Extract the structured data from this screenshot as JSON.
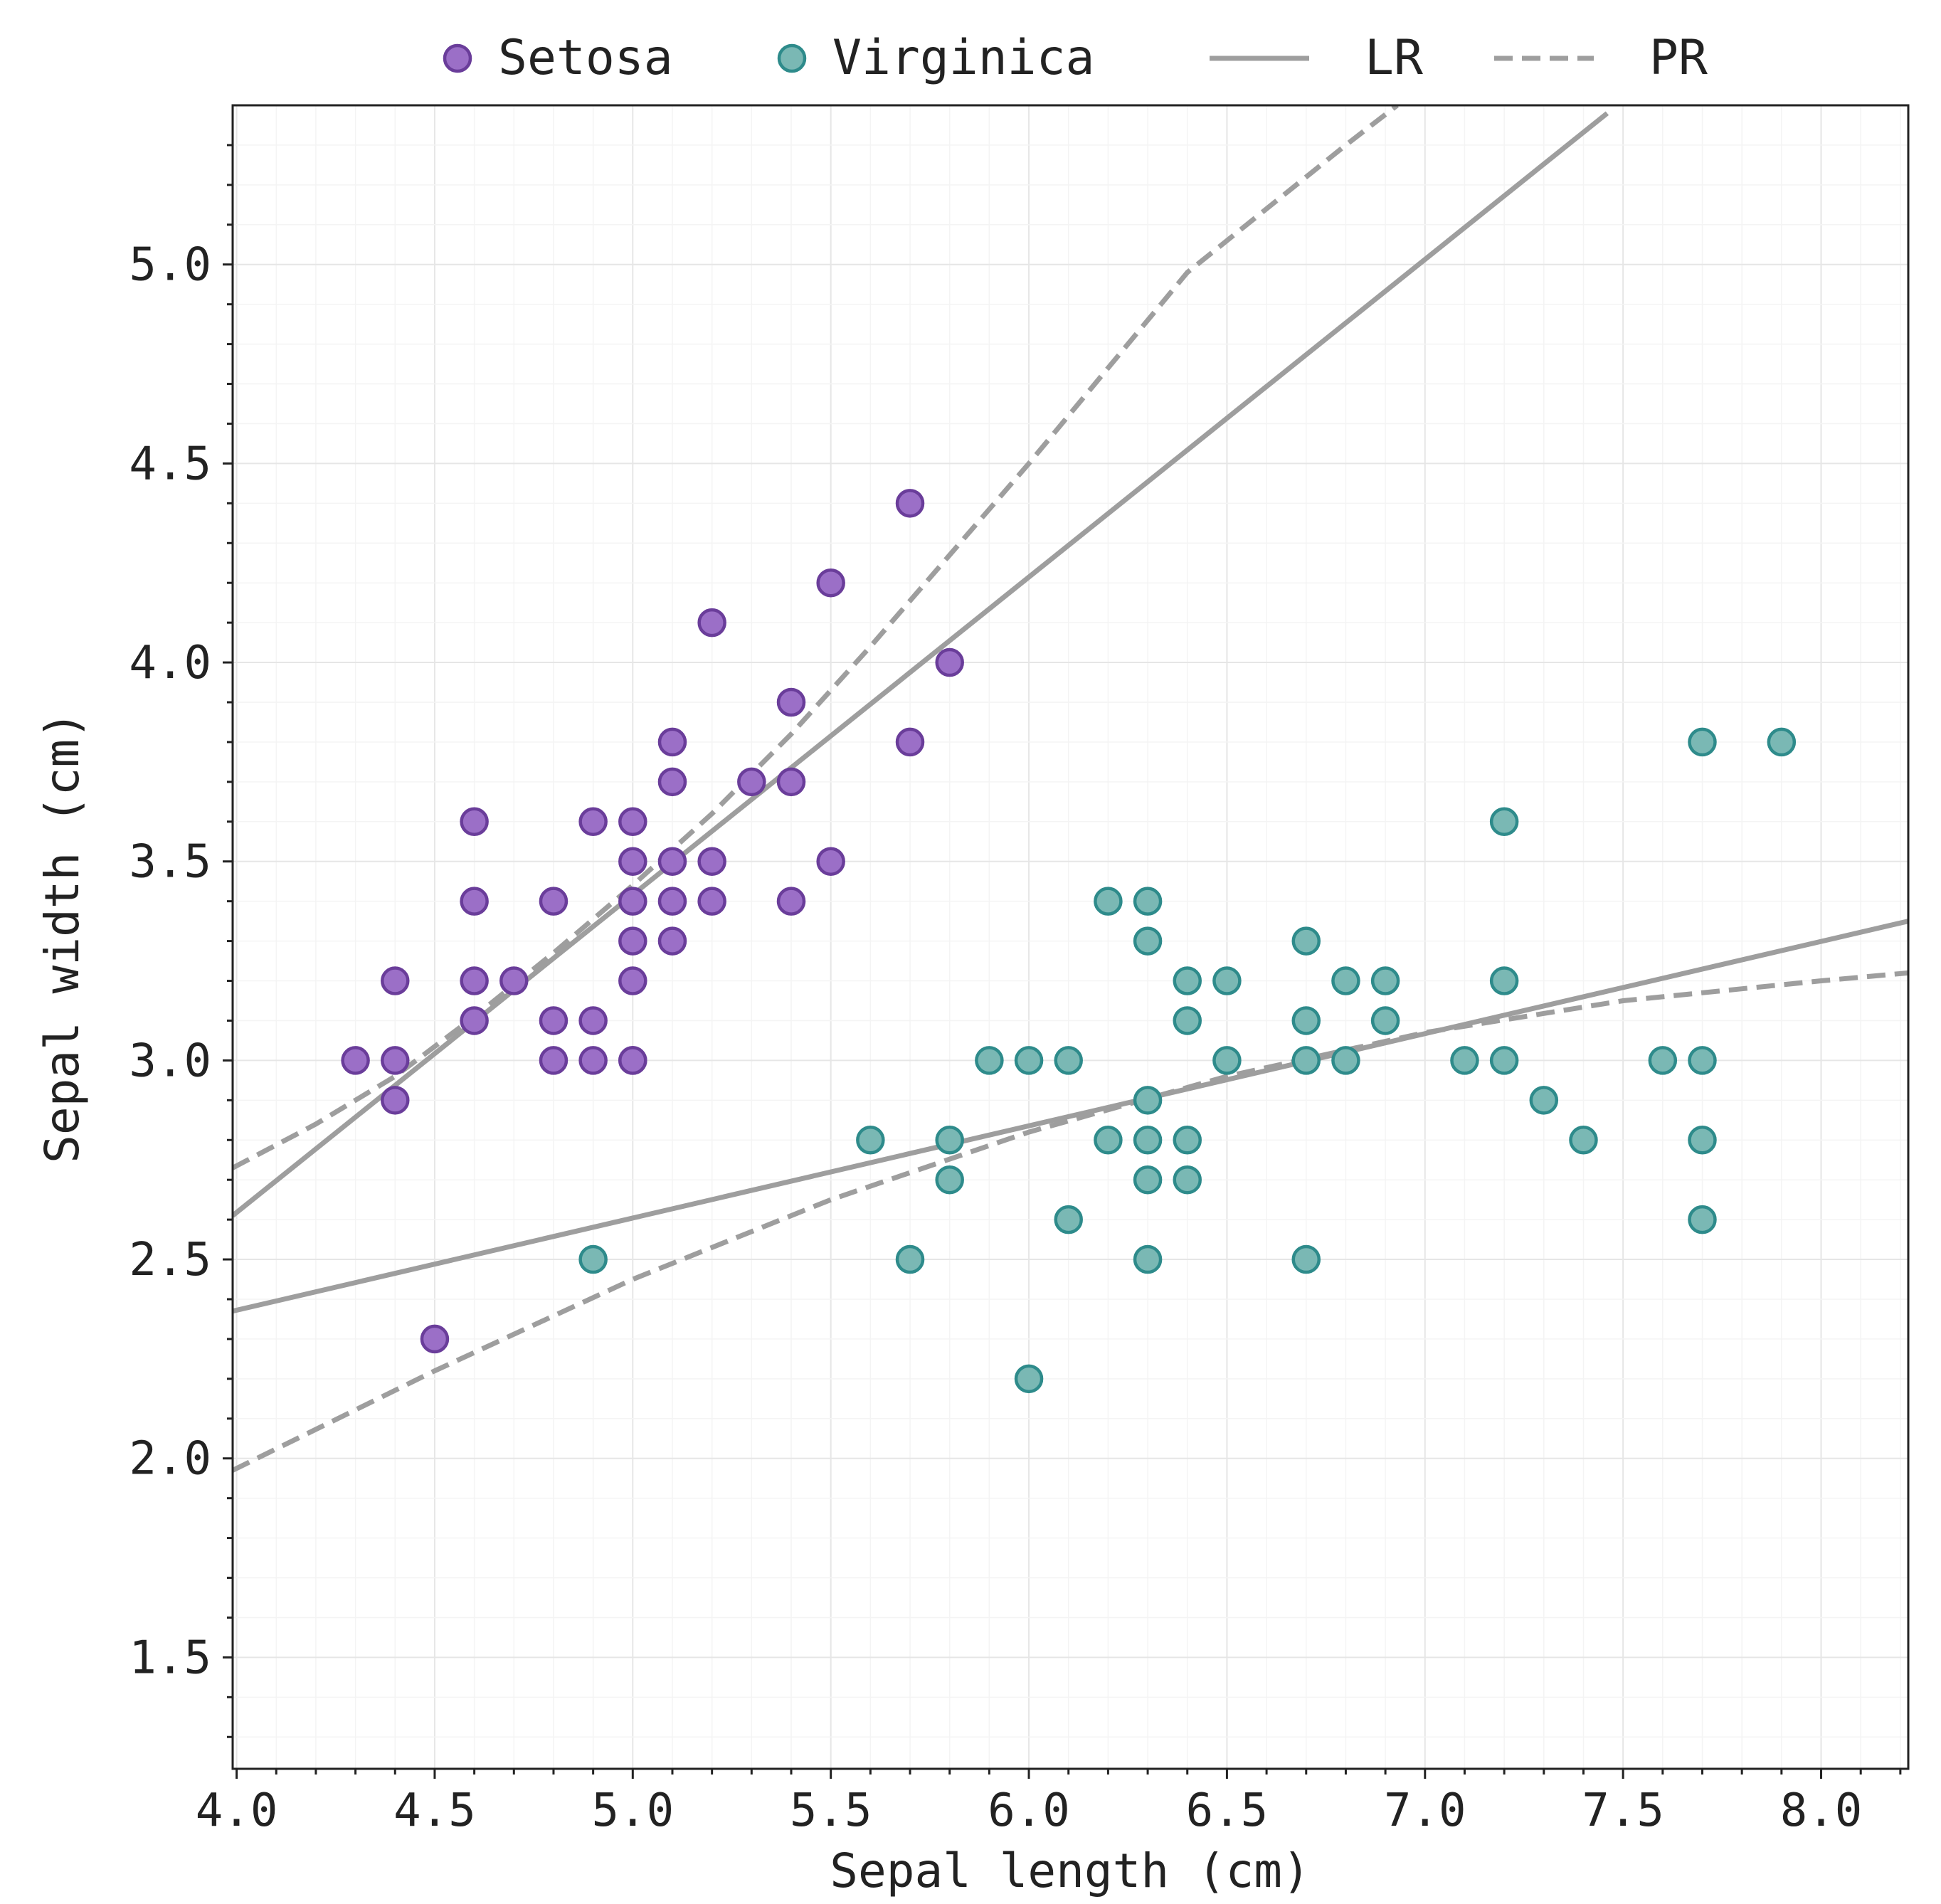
{
  "chart_data": {
    "type": "scatter",
    "title": "",
    "xlabel": "Sepal length (cm)",
    "ylabel": "Sepal width (cm)",
    "xlim": [
      3.99,
      8.22
    ],
    "ylim": [
      1.22,
      5.4
    ],
    "x_ticks": [
      4.0,
      4.5,
      5.0,
      5.5,
      6.0,
      6.5,
      7.0,
      7.5,
      8.0
    ],
    "x_tick_labels": [
      "4.0",
      "4.5",
      "5.0",
      "5.5",
      "6.0",
      "6.5",
      "7.0",
      "7.5",
      "8.0"
    ],
    "y_ticks": [
      1.5,
      2.0,
      2.5,
      3.0,
      3.5,
      4.0,
      4.5,
      5.0
    ],
    "y_tick_labels": [
      "1.5",
      "2.0",
      "2.5",
      "3.0",
      "3.5",
      "4.0",
      "4.5",
      "5.0"
    ],
    "grid": true,
    "legend_position": "top-center",
    "series": [
      {
        "name": "Setosa",
        "kind": "points",
        "fill": "#9b6fc7",
        "stroke": "#6a3d9a",
        "x": [
          4.3,
          4.4,
          4.4,
          4.4,
          4.5,
          4.6,
          4.6,
          4.6,
          4.6,
          4.7,
          4.8,
          4.8,
          4.8,
          4.9,
          4.9,
          4.9,
          5.0,
          5.0,
          5.0,
          5.0,
          5.0,
          5.0,
          5.0,
          5.1,
          5.1,
          5.1,
          5.1,
          5.1,
          5.2,
          5.2,
          5.2,
          5.3,
          5.4,
          5.4,
          5.4,
          5.5,
          5.5,
          5.7,
          5.7,
          5.8
        ],
        "y": [
          3.0,
          3.2,
          3.0,
          2.9,
          2.3,
          3.6,
          3.4,
          3.2,
          3.1,
          3.2,
          3.4,
          3.1,
          3.0,
          3.6,
          3.1,
          3.0,
          3.6,
          3.5,
          3.4,
          3.3,
          3.2,
          3.0,
          3.0,
          3.8,
          3.7,
          3.5,
          3.4,
          3.3,
          4.1,
          3.5,
          3.4,
          3.7,
          3.9,
          3.7,
          3.4,
          4.2,
          3.5,
          4.4,
          3.8,
          4.0
        ]
      },
      {
        "name": "Virginica",
        "kind": "points",
        "fill": "#7ab8b4",
        "stroke": "#2e8b8b",
        "x": [
          4.9,
          5.6,
          5.7,
          5.8,
          5.8,
          5.9,
          6.0,
          6.0,
          6.1,
          6.1,
          6.2,
          6.2,
          6.3,
          6.3,
          6.3,
          6.3,
          6.3,
          6.3,
          6.4,
          6.4,
          6.4,
          6.4,
          6.5,
          6.5,
          6.7,
          6.7,
          6.7,
          6.7,
          6.8,
          6.8,
          6.9,
          6.9,
          7.1,
          7.2,
          7.2,
          7.2,
          7.3,
          7.4,
          7.6,
          7.7,
          7.7,
          7.7,
          7.7,
          7.9
        ],
        "y": [
          2.5,
          2.8,
          2.5,
          2.8,
          2.7,
          3.0,
          3.0,
          2.2,
          3.0,
          2.6,
          3.4,
          2.8,
          3.4,
          3.3,
          2.9,
          2.8,
          2.7,
          2.5,
          3.2,
          3.1,
          2.8,
          2.7,
          3.2,
          3.0,
          3.3,
          3.1,
          3.0,
          2.5,
          3.2,
          3.0,
          3.2,
          3.1,
          3.0,
          3.6,
          3.2,
          3.0,
          2.9,
          2.8,
          3.0,
          3.8,
          3.0,
          2.8,
          2.6,
          3.8
        ]
      },
      {
        "name": "LR",
        "kind": "line",
        "dash": "solid",
        "color": "#9e9e9e",
        "fits": [
          {
            "x": [
              3.99,
              7.46
            ],
            "y": [
              2.61,
              5.38
            ]
          },
          {
            "x": [
              3.99,
              8.22
            ],
            "y": [
              2.37,
              3.35
            ]
          }
        ]
      },
      {
        "name": "PR",
        "kind": "line",
        "dash": "dashed",
        "color": "#9e9e9e",
        "fits": [
          {
            "x": [
              3.99,
              4.2,
              4.4,
              4.6,
              4.8,
              5.0,
              5.2,
              5.4,
              5.6,
              5.8,
              6.0,
              6.2,
              6.4,
              6.6,
              6.8,
              6.93
            ],
            "y": [
              2.73,
              2.84,
              2.96,
              3.11,
              3.27,
              3.44,
              3.62,
              3.82,
              4.04,
              4.27,
              4.5,
              4.74,
              4.98,
              5.14,
              5.3,
              5.4
            ]
          },
          {
            "x": [
              3.99,
              4.5,
              5.0,
              5.5,
              6.0,
              6.5,
              7.0,
              7.5,
              8.0,
              8.22
            ],
            "y": [
              1.97,
              2.22,
              2.45,
              2.65,
              2.82,
              2.96,
              3.07,
              3.15,
              3.2,
              3.22
            ]
          }
        ]
      }
    ]
  }
}
